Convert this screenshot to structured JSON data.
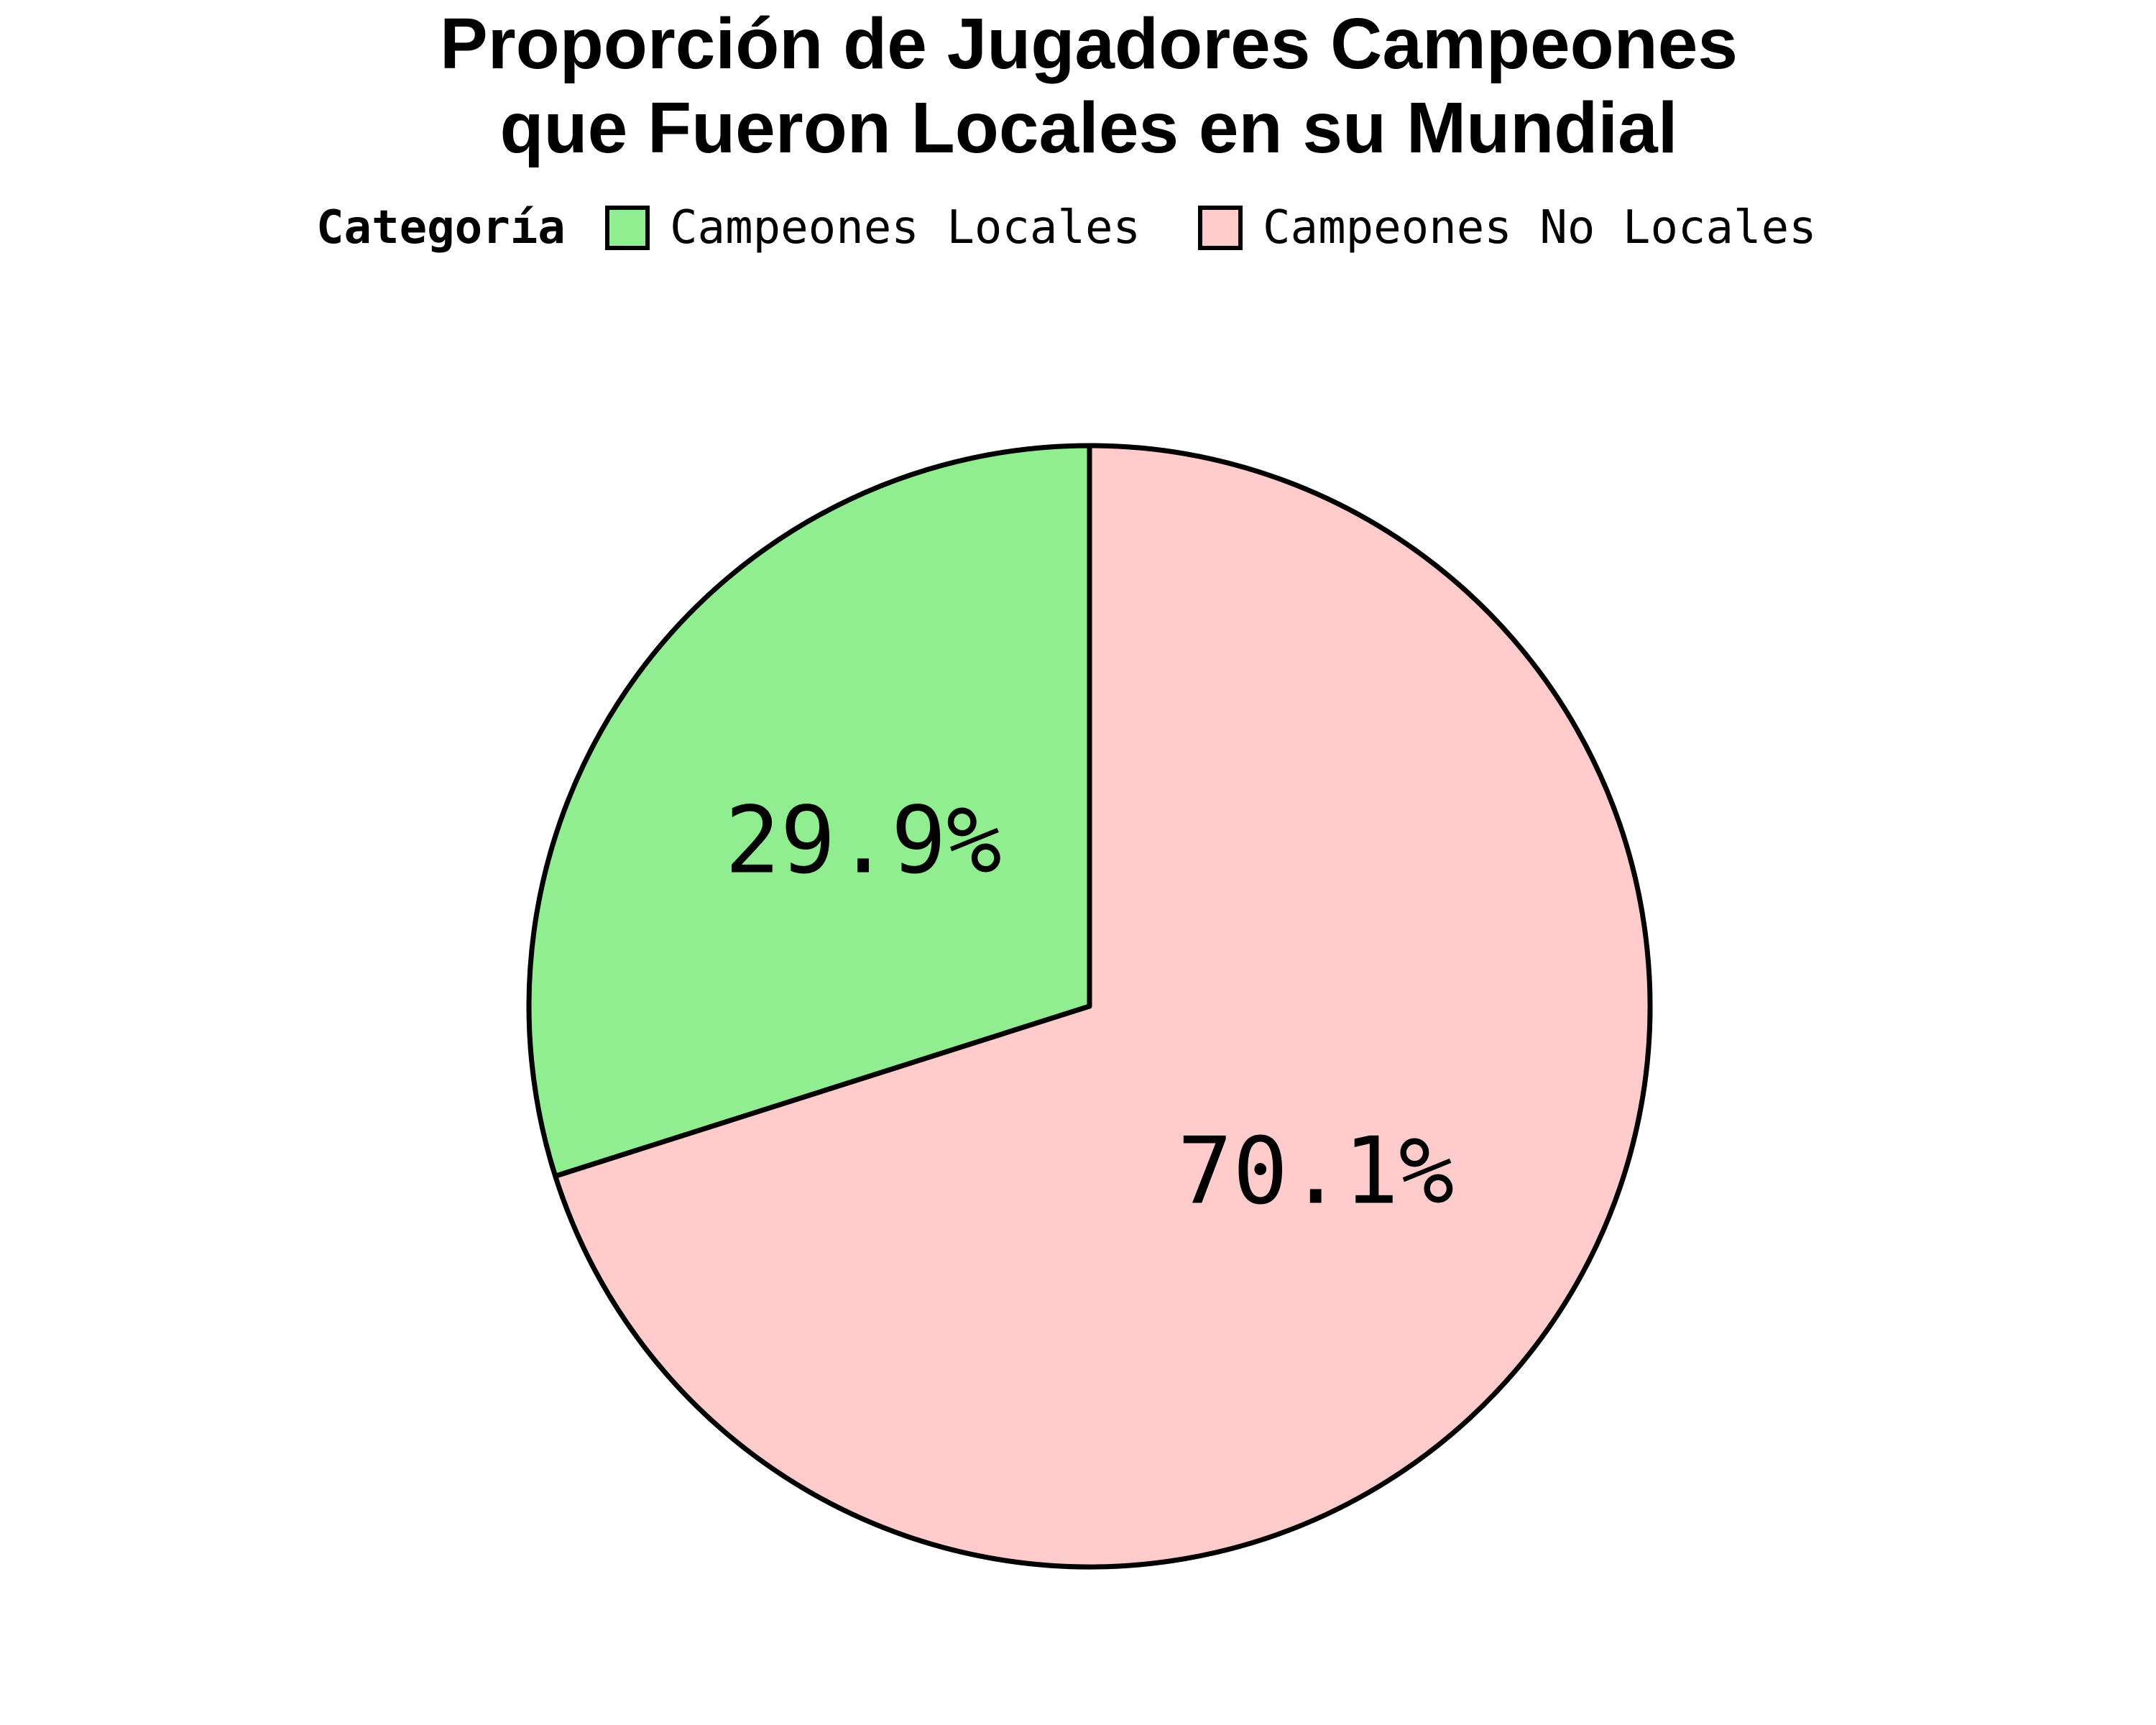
{
  "chart_data": {
    "type": "pie",
    "title": "Proporción de Jugadores Campeones que Fueron Locales en su Mundial",
    "title_lines": [
      "Proporción de Jugadores Campeones",
      "que Fueron Locales en su Mundial"
    ],
    "legend": {
      "title": "Categoría",
      "placement": "top"
    },
    "slices": [
      {
        "label": "Campeones Locales",
        "value": 29.9,
        "display": "29.9%",
        "color": "#90ee90"
      },
      {
        "label": "Campeones No Locales",
        "value": 70.1,
        "display": "70.1%",
        "color": "#ffcccb"
      }
    ],
    "start": "12 o'clock",
    "direction": "counterclockwise",
    "stroke_color": "#000000"
  }
}
